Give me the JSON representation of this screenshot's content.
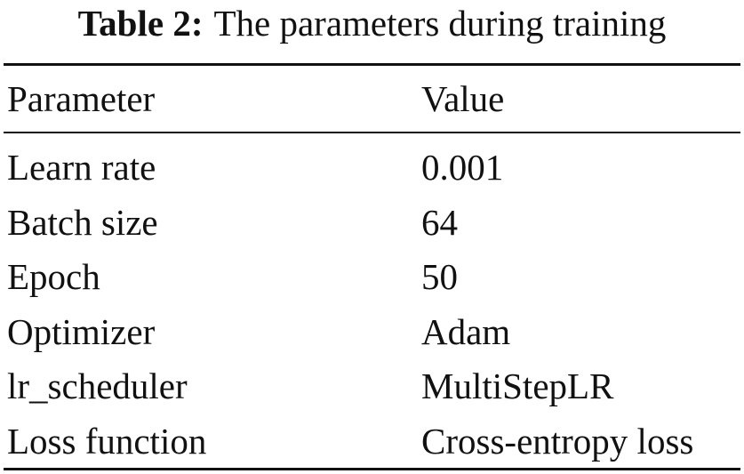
{
  "caption": {
    "label": "Table 2:",
    "title": "The parameters during training"
  },
  "table": {
    "header": [
      "Parameter",
      "Value"
    ],
    "rows": [
      [
        "Learn rate",
        "0.001"
      ],
      [
        "Batch size",
        "64"
      ],
      [
        "Epoch",
        "50"
      ],
      [
        "Optimizer",
        "Adam"
      ],
      [
        "lr_scheduler",
        "MultiStepLR"
      ],
      [
        "Loss function",
        "Cross-entropy loss"
      ]
    ]
  }
}
